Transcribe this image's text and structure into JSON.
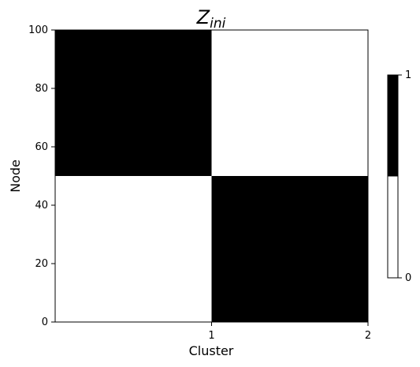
{
  "chart_data": {
    "type": "heatmap",
    "title": {
      "main": "Z",
      "subscript": "ini"
    },
    "xlabel": "Cluster",
    "ylabel": "Node",
    "xlim": [
      0,
      2
    ],
    "ylim": [
      0,
      100
    ],
    "x_ticks": [
      1,
      2
    ],
    "x_tick_labels": [
      "1",
      "2"
    ],
    "y_ticks": [
      0,
      20,
      40,
      60,
      80,
      100
    ],
    "y_tick_labels": [
      "0",
      "20",
      "40",
      "60",
      "80",
      "100"
    ],
    "cells": [
      {
        "x0": 0,
        "x1": 1,
        "y0": 50,
        "y1": 100,
        "value": 1
      },
      {
        "x0": 1,
        "x1": 2,
        "y0": 50,
        "y1": 100,
        "value": 0
      },
      {
        "x0": 0,
        "x1": 1,
        "y0": 0,
        "y1": 50,
        "value": 0
      },
      {
        "x0": 1,
        "x1": 2,
        "y0": 0,
        "y1": 50,
        "value": 1
      }
    ],
    "colorbar": {
      "min": 0,
      "max": 1,
      "tick_labels": [
        "0",
        "1"
      ],
      "colors": {
        "0": "#ffffff",
        "1": "#000000"
      }
    },
    "grid": false
  }
}
